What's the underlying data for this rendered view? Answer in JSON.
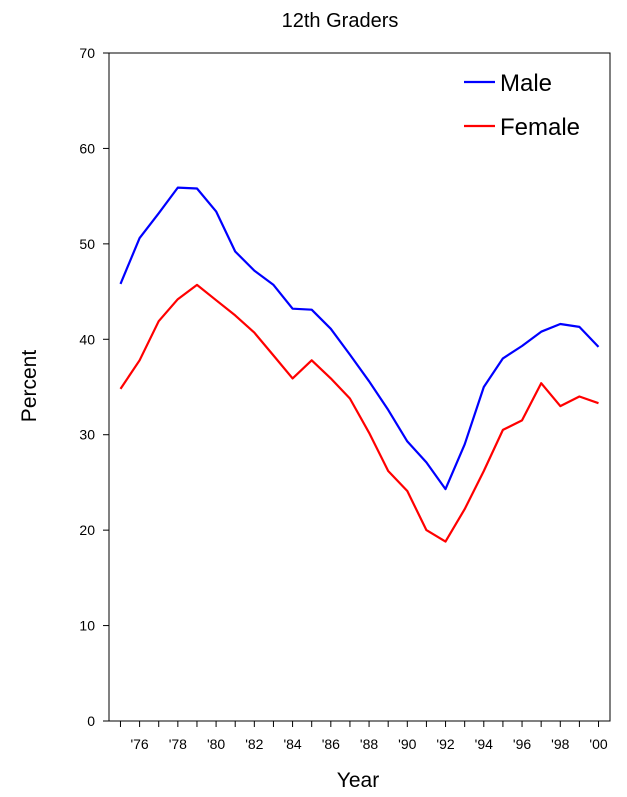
{
  "chart_data": {
    "type": "line",
    "title": "12th Graders",
    "xlabel": "Year",
    "ylabel": "Percent",
    "ylim": [
      0,
      70
    ],
    "xlim": [
      1974.4,
      2000.6
    ],
    "yticks": [
      0,
      10,
      20,
      30,
      40,
      50,
      60,
      70
    ],
    "xticks": [
      {
        "value": 1976,
        "label": "'76"
      },
      {
        "value": 1978,
        "label": "'78"
      },
      {
        "value": 1980,
        "label": "'80"
      },
      {
        "value": 1982,
        "label": "'82"
      },
      {
        "value": 1984,
        "label": "'84"
      },
      {
        "value": 1986,
        "label": "'86"
      },
      {
        "value": 1988,
        "label": "'88"
      },
      {
        "value": 1990,
        "label": "'90"
      },
      {
        "value": 1992,
        "label": "'92"
      },
      {
        "value": 1994,
        "label": "'94"
      },
      {
        "value": 1996,
        "label": "'96"
      },
      {
        "value": 1998,
        "label": "'98"
      },
      {
        "value": 2000,
        "label": "'00"
      }
    ],
    "x": [
      1975,
      1976,
      1977,
      1978,
      1979,
      1980,
      1981,
      1982,
      1983,
      1984,
      1985,
      1986,
      1987,
      1988,
      1989,
      1990,
      1991,
      1992,
      1993,
      1994,
      1995,
      1996,
      1997,
      1998,
      1999,
      2000
    ],
    "series": [
      {
        "name": "Male",
        "color": "#0000ff",
        "values": [
          45.8,
          50.6,
          53.2,
          55.9,
          55.8,
          53.4,
          49.2,
          47.2,
          45.7,
          43.2,
          43.1,
          41.1,
          38.4,
          35.6,
          32.6,
          29.3,
          27.1,
          24.3,
          29.0,
          35.0,
          38.0,
          39.3,
          40.8,
          41.6,
          41.3,
          39.2
        ]
      },
      {
        "name": "Female",
        "color": "#ff0000",
        "values": [
          34.8,
          37.8,
          41.9,
          44.2,
          45.7,
          44.1,
          42.5,
          40.7,
          38.3,
          35.9,
          37.8,
          35.9,
          33.8,
          30.2,
          26.2,
          24.1,
          20.0,
          18.8,
          22.2,
          26.2,
          30.5,
          31.5,
          35.4,
          33.0,
          34.0,
          33.3
        ]
      }
    ],
    "legend_position": "top-right",
    "grid": false
  }
}
